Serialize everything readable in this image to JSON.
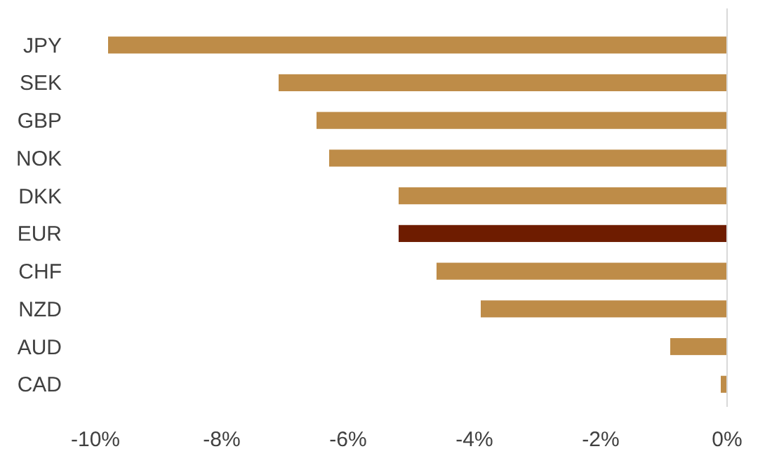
{
  "chart_data": {
    "type": "bar",
    "orientation": "horizontal",
    "categories": [
      "JPY",
      "SEK",
      "GBP",
      "NOK",
      "DKK",
      "EUR",
      "CHF",
      "NZD",
      "AUD",
      "CAD"
    ],
    "values": [
      -9.8,
      -7.1,
      -6.5,
      -6.3,
      -5.2,
      -5.2,
      -4.6,
      -3.9,
      -0.9,
      -0.1
    ],
    "colors": [
      "#be8c48",
      "#be8c48",
      "#be8c48",
      "#be8c48",
      "#be8c48",
      "#6e1c00",
      "#be8c48",
      "#be8c48",
      "#be8c48",
      "#be8c48"
    ],
    "xlim": [
      -10,
      0
    ],
    "xticks": [
      {
        "value": -10,
        "label": "-10%"
      },
      {
        "value": -8,
        "label": "-8%"
      },
      {
        "value": -6,
        "label": "-6%"
      },
      {
        "value": -4,
        "label": "-4%"
      },
      {
        "value": -2,
        "label": "-2%"
      },
      {
        "value": 0,
        "label": "0%"
      }
    ],
    "grid": false
  }
}
